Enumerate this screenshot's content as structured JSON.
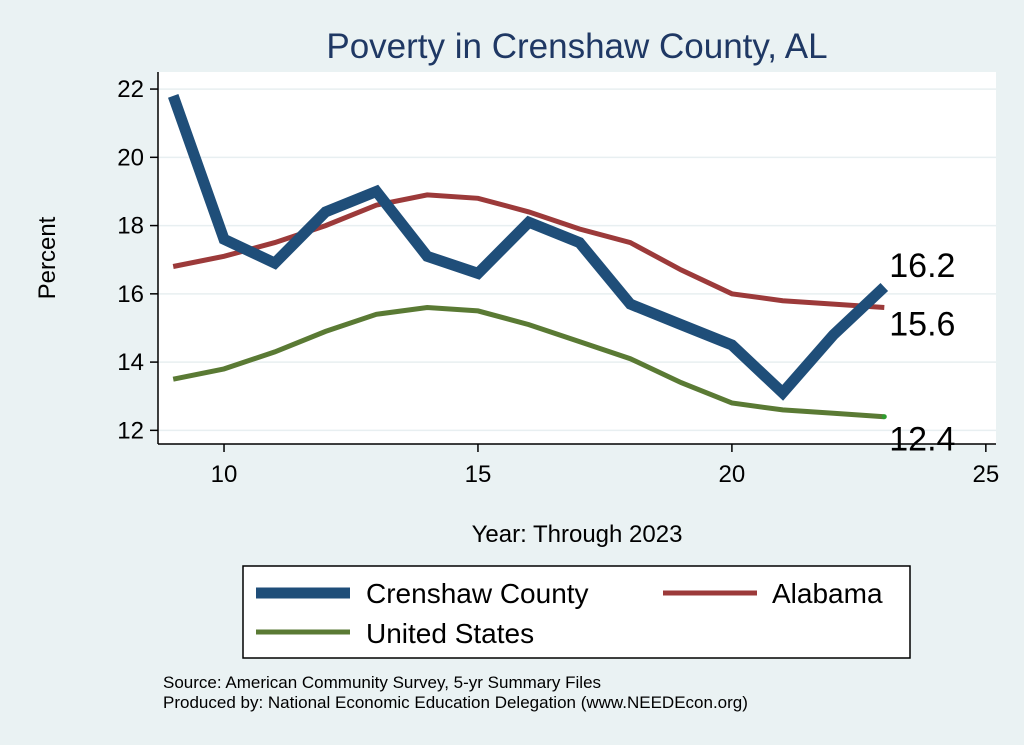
{
  "chart_data": {
    "type": "line",
    "title": "Poverty in Crenshaw County, AL",
    "xlabel": "Year: Through 2023",
    "ylabel": "Percent",
    "xlim": [
      8.7,
      25.2
    ],
    "ylim": [
      11.6,
      22.5
    ],
    "xticks": [
      10,
      15,
      20,
      25
    ],
    "yticks": [
      12,
      14,
      16,
      18,
      20,
      22
    ],
    "grid": true,
    "legend_position": "bottom",
    "series": [
      {
        "name": "Crenshaw County",
        "color": "#1f4e79",
        "x": [
          9,
          10,
          11,
          12,
          13,
          14,
          15,
          16,
          17,
          18,
          19,
          20,
          21,
          22,
          23
        ],
        "values": [
          21.8,
          17.6,
          16.9,
          18.4,
          19.0,
          17.1,
          16.6,
          18.1,
          17.5,
          15.7,
          15.1,
          14.5,
          13.1,
          14.8,
          16.2
        ],
        "end_label": "16.2"
      },
      {
        "name": "Alabama",
        "color": "#9c3a3a",
        "x": [
          9,
          10,
          11,
          12,
          13,
          14,
          15,
          16,
          17,
          18,
          19,
          20,
          21,
          22,
          23
        ],
        "values": [
          16.8,
          17.1,
          17.5,
          18.0,
          18.6,
          18.9,
          18.8,
          18.4,
          17.9,
          17.5,
          16.7,
          16.0,
          15.8,
          15.7,
          15.6
        ],
        "end_label": "15.6"
      },
      {
        "name": "United States",
        "color": "#5a7a34",
        "x": [
          9,
          10,
          11,
          12,
          13,
          14,
          15,
          16,
          17,
          18,
          19,
          20,
          21,
          22,
          23
        ],
        "values": [
          13.5,
          13.8,
          14.3,
          14.9,
          15.4,
          15.6,
          15.5,
          15.1,
          14.6,
          14.1,
          13.4,
          12.8,
          12.6,
          12.5,
          12.4
        ],
        "end_label": "12.4"
      }
    ],
    "notes": [
      "Source: American Community Survey, 5-yr Summary Files",
      "Produced by: National Economic Education Delegation (www.NEEDEcon.org)"
    ]
  }
}
